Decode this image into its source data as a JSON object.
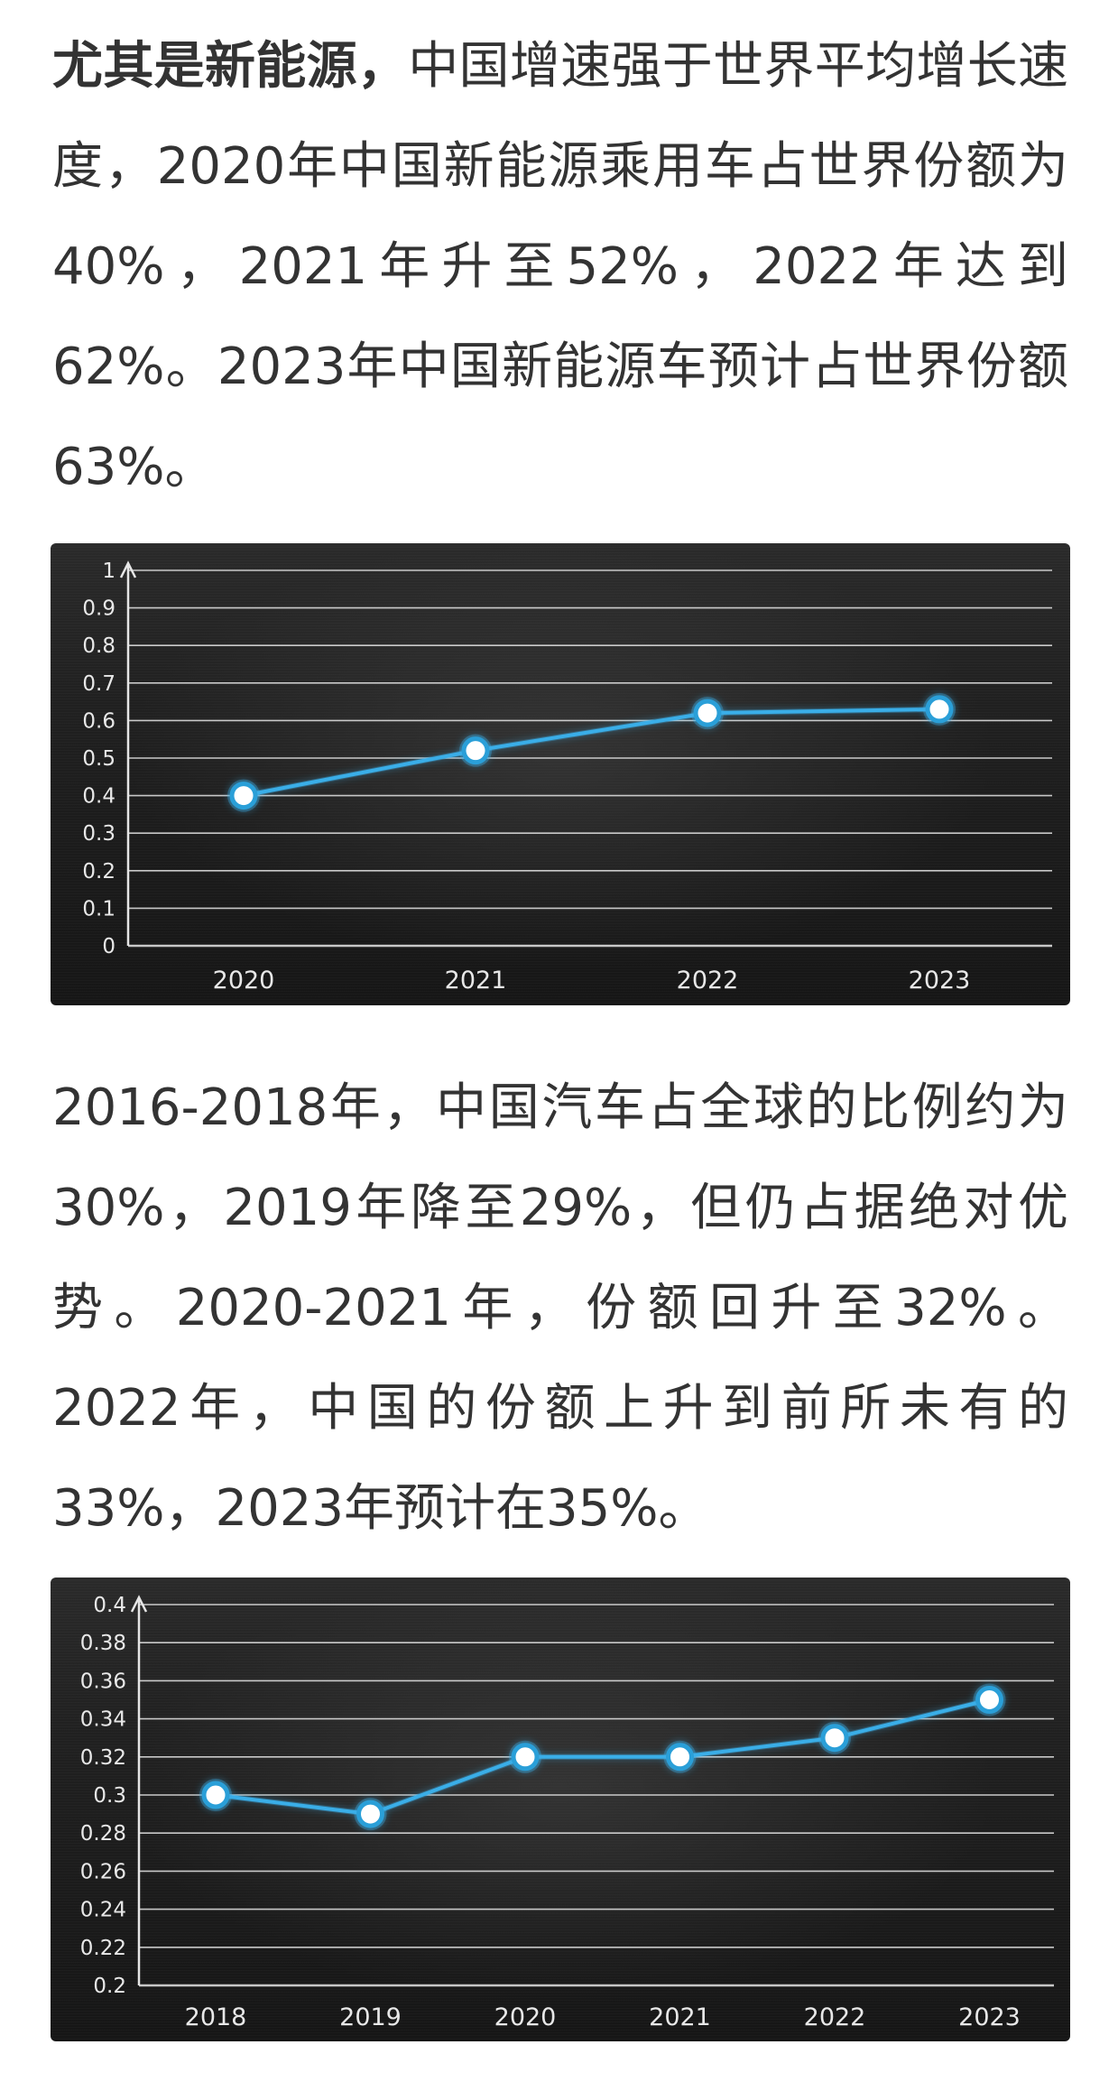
{
  "paragraphs": {
    "p1_lead": "尤其是新能源，",
    "p1_rest": "中国增速强于世界平均增长速度，2020年中国新能源乘用车占世界份额为40%，2021年升至52%，2022年达到62%。2023年中国新能源车预计占世界份额63%。",
    "p2": "2016-2018年，中国汽车占全球的比例约为30%，2019年降至29%，但仍占据绝对优势。2020-2021年，份额回升至32%。2022年，中国的份额上升到前所未有的33%，2023年预计在35%。"
  },
  "colors": {
    "line": "#3aaee8",
    "marker_fill": "#ffffff",
    "marker_stroke": "#2a9fd8",
    "grid": "#e6e6e6",
    "tick_text": "#e8e8e8"
  },
  "chart_data": [
    {
      "type": "line",
      "categories": [
        "2020",
        "2021",
        "2022",
        "2023"
      ],
      "series": [
        {
          "values": [
            0.4,
            0.52,
            0.62,
            0.63
          ]
        }
      ],
      "yticks": [
        "0",
        "0.1",
        "0.2",
        "0.3",
        "0.4",
        "0.5",
        "0.6",
        "0.7",
        "0.8",
        "0.9",
        "1"
      ],
      "ylim": [
        0,
        1
      ],
      "grid": true,
      "title": "",
      "xlabel": "",
      "ylabel": ""
    },
    {
      "type": "line",
      "categories": [
        "2018",
        "2019",
        "2020",
        "2021",
        "2022",
        "2023"
      ],
      "series": [
        {
          "values": [
            0.3,
            0.29,
            0.32,
            0.32,
            0.33,
            0.35
          ]
        }
      ],
      "yticks": [
        "0.2",
        "0.22",
        "0.24",
        "0.26",
        "0.28",
        "0.3",
        "0.32",
        "0.34",
        "0.36",
        "0.38",
        "0.4"
      ],
      "ylim": [
        0.2,
        0.4
      ],
      "grid": true,
      "title": "",
      "xlabel": "",
      "ylabel": ""
    }
  ]
}
